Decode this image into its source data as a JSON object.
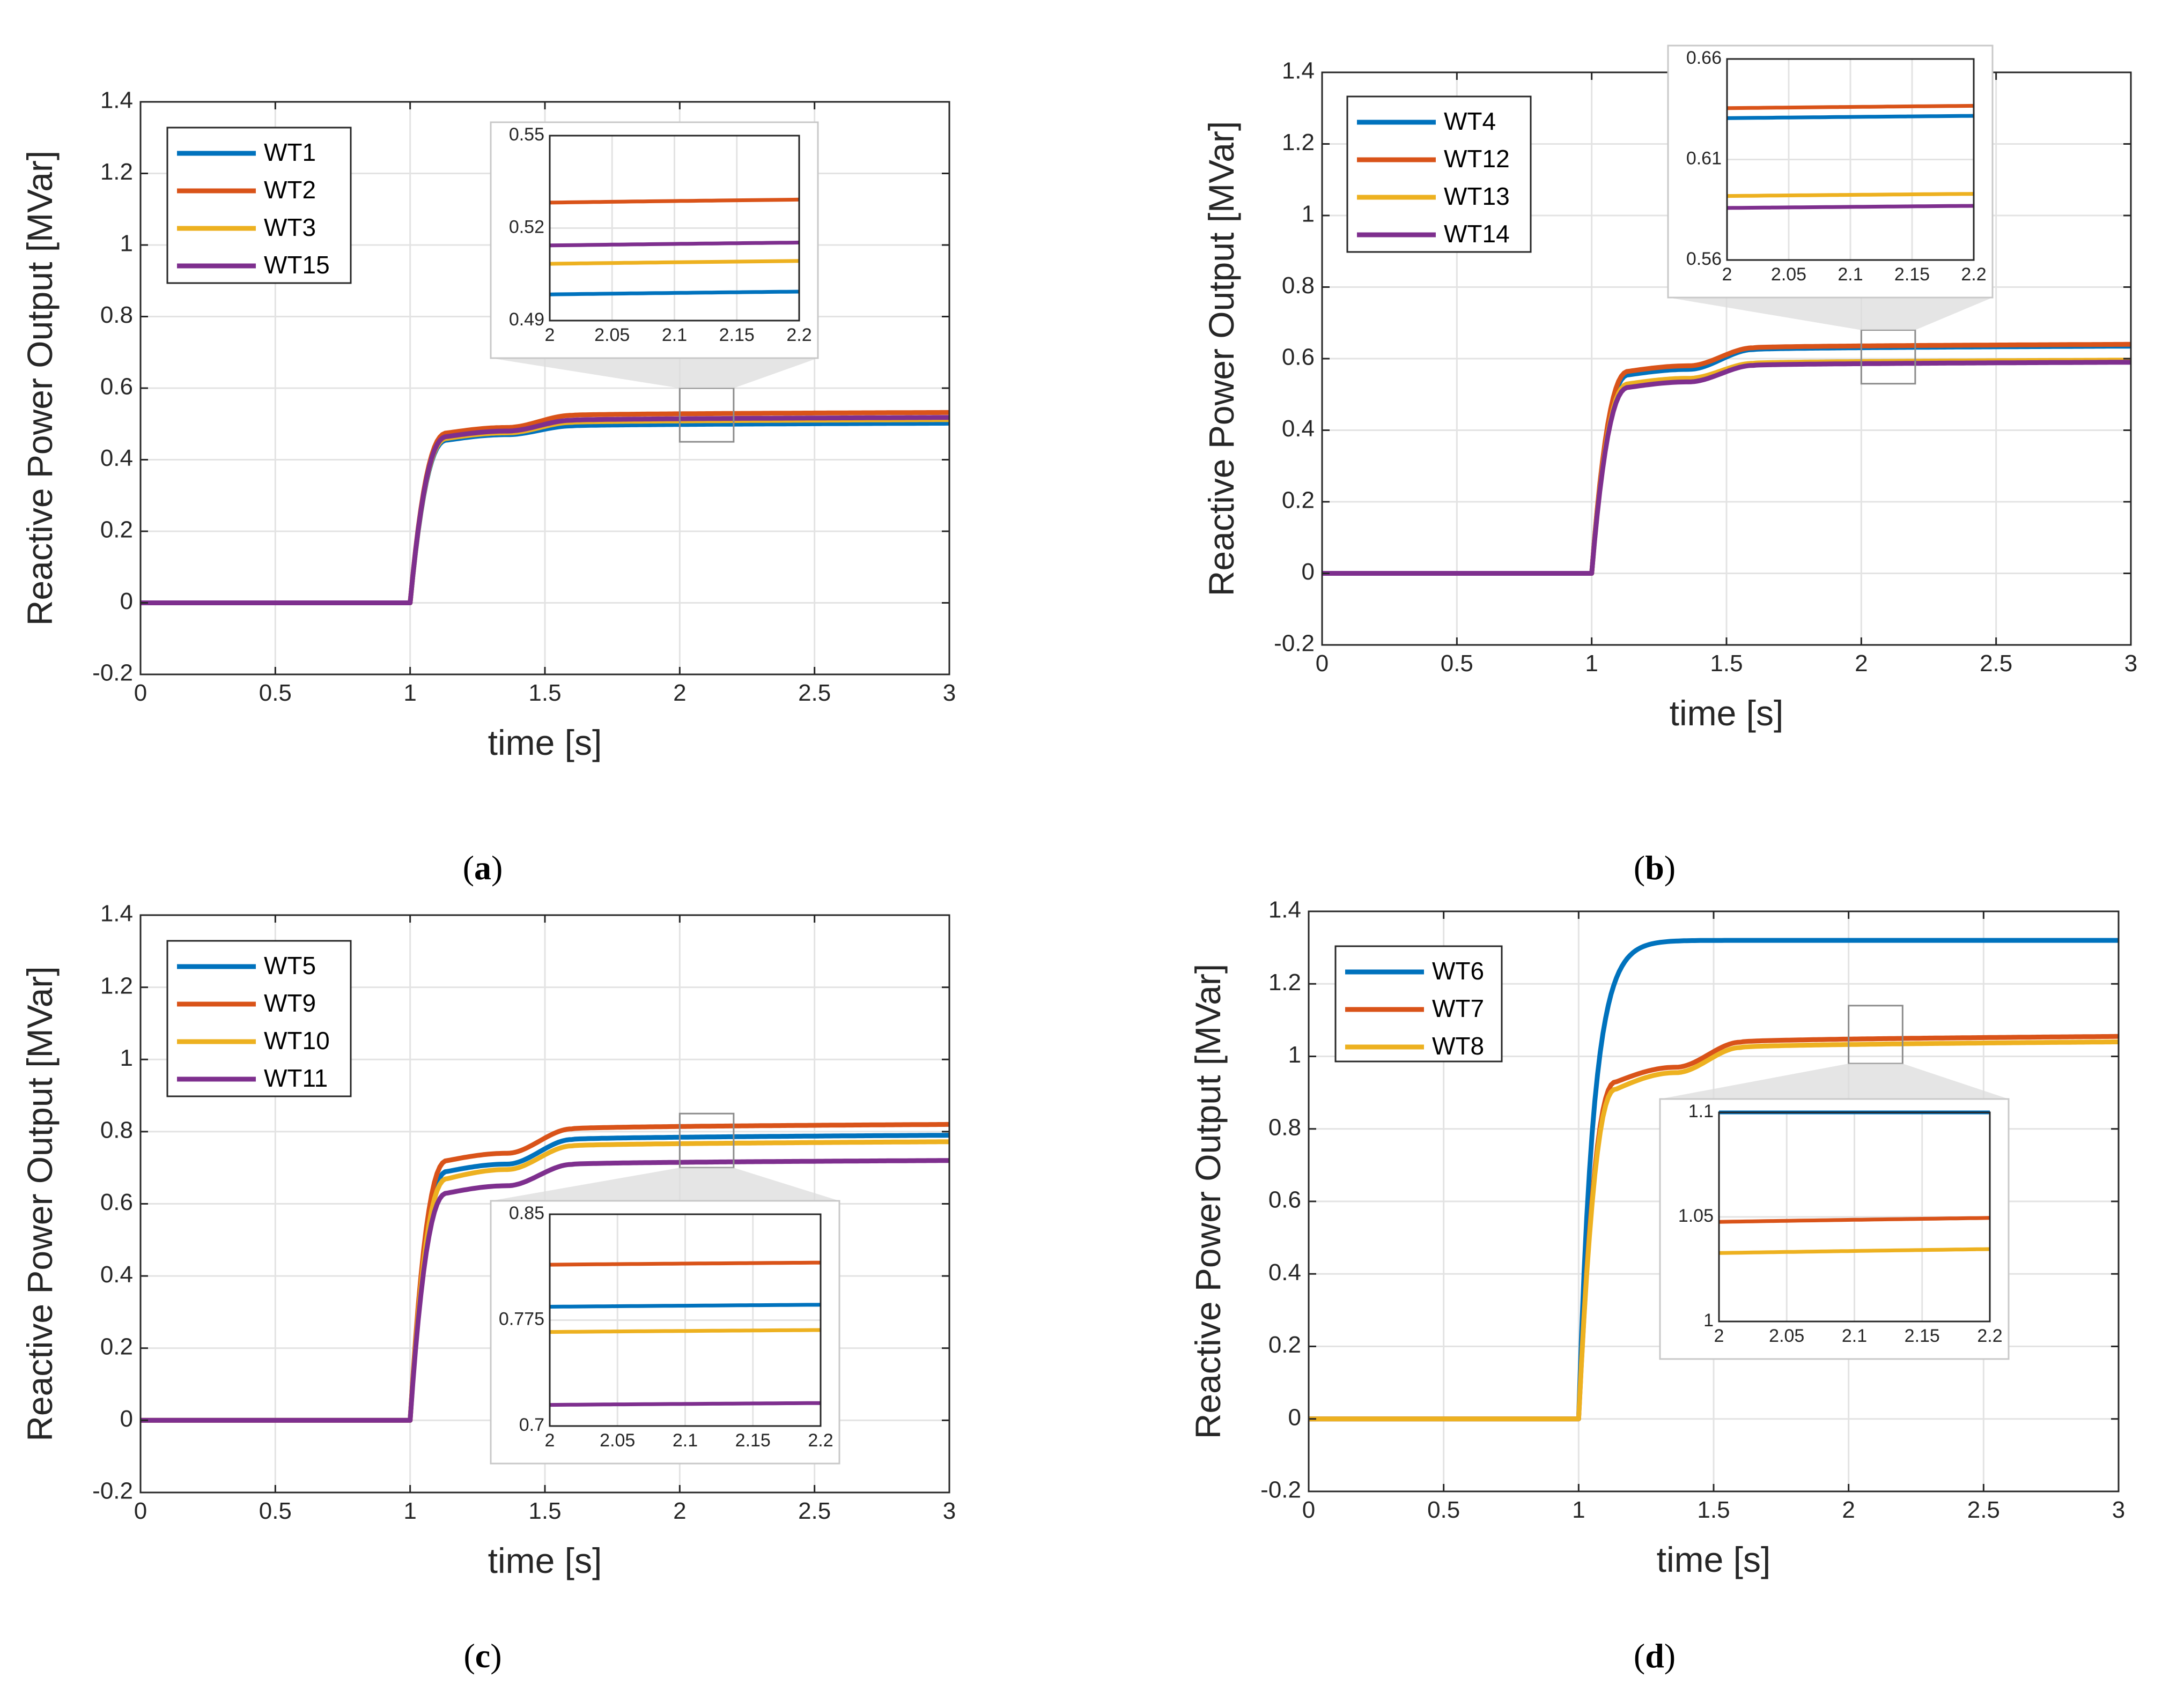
{
  "colors": {
    "blue": "#0072BD",
    "orange": "#D95319",
    "yellow": "#EDB120",
    "purple": "#7E2F8E",
    "grid": "#e3e3e3",
    "axis": "#262626"
  },
  "chart_data": [
    {
      "panel": "a",
      "type": "line",
      "caption": {
        "open": "(",
        "letter": "a",
        "close": ")"
      },
      "xlabel": "time [s]",
      "ylabel": "Reactive Power Output [MVar]",
      "xlim": [
        0,
        3
      ],
      "ylim": [
        -0.2,
        1.4
      ],
      "xticks": [
        0,
        0.5,
        1,
        1.5,
        2,
        2.5,
        3
      ],
      "xtick_labels": [
        "0",
        "0.5",
        "1",
        "1.5",
        "2",
        "2.5",
        "3"
      ],
      "yticks": [
        -0.2,
        0,
        0.2,
        0.4,
        0.6,
        0.8,
        1,
        1.2,
        1.4
      ],
      "ytick_labels": [
        "-0.2",
        "0",
        "0.2",
        "0.4",
        "0.6",
        "0.8",
        "1",
        "1.2",
        "1.4"
      ],
      "grid": true,
      "legend_position": "top-left",
      "series": [
        {
          "name": "WT1",
          "color": "blue",
          "steady": 0.502,
          "knee": 0.455,
          "mid": 0.47
        },
        {
          "name": "WT2",
          "color": "orange",
          "steady": 0.532,
          "knee": 0.475,
          "mid": 0.49
        },
        {
          "name": "WT3",
          "color": "yellow",
          "steady": 0.512,
          "knee": 0.46,
          "mid": 0.475
        },
        {
          "name": "WT15",
          "color": "purple",
          "steady": 0.518,
          "knee": 0.465,
          "mid": 0.48
        }
      ],
      "zoom": {
        "xlim": [
          2,
          2.2
        ],
        "ylim": [
          0.49,
          0.55
        ],
        "placement": "top-center",
        "xticks": [
          2,
          2.05,
          2.1,
          2.15,
          2.2
        ],
        "xtick_labels": [
          "2",
          "2.05",
          "2.1",
          "2.15",
          "2.2"
        ],
        "yticks": [
          0.49,
          0.52,
          0.55
        ],
        "ytick_labels": [
          "0.49",
          "0.52",
          "0.55"
        ],
        "source_ylim": [
          0.45,
          0.6
        ]
      }
    },
    {
      "panel": "b",
      "type": "line",
      "caption": {
        "open": "(",
        "letter": "b",
        "close": ")"
      },
      "xlabel": "time [s]",
      "ylabel": "Reactive Power Output [MVar]",
      "xlim": [
        0,
        3
      ],
      "ylim": [
        -0.2,
        1.4
      ],
      "xticks": [
        0,
        0.5,
        1,
        1.5,
        2,
        2.5,
        3
      ],
      "xtick_labels": [
        "0",
        "0.5",
        "1",
        "1.5",
        "2",
        "2.5",
        "3"
      ],
      "yticks": [
        -0.2,
        0,
        0.2,
        0.4,
        0.6,
        0.8,
        1,
        1.2,
        1.4
      ],
      "ytick_labels": [
        "-0.2",
        "0",
        "0.2",
        "0.4",
        "0.6",
        "0.8",
        "1",
        "1.2",
        "1.4"
      ],
      "grid": true,
      "legend_position": "top-left",
      "series": [
        {
          "name": "WT4",
          "color": "blue",
          "steady": 0.635,
          "knee": 0.555,
          "mid": 0.57
        },
        {
          "name": "WT12",
          "color": "orange",
          "steady": 0.64,
          "knee": 0.565,
          "mid": 0.58
        },
        {
          "name": "WT13",
          "color": "yellow",
          "steady": 0.596,
          "knee": 0.53,
          "mid": 0.545
        },
        {
          "name": "WT14",
          "color": "purple",
          "steady": 0.59,
          "knee": 0.52,
          "mid": 0.535
        }
      ],
      "zoom": {
        "xlim": [
          2,
          2.2
        ],
        "ylim": [
          0.56,
          0.66
        ],
        "placement": "top-right",
        "xticks": [
          2,
          2.05,
          2.1,
          2.15,
          2.2
        ],
        "xtick_labels": [
          "2",
          "2.05",
          "2.1",
          "2.15",
          "2.2"
        ],
        "yticks": [
          0.56,
          0.61,
          0.66
        ],
        "ytick_labels": [
          "0.56",
          "0.61",
          "0.66"
        ],
        "source_ylim": [
          0.53,
          0.68
        ]
      }
    },
    {
      "panel": "c",
      "type": "line",
      "caption": {
        "open": "(",
        "letter": "c",
        "close": ")"
      },
      "xlabel": "time [s]",
      "ylabel": "Reactive Power Output [MVar]",
      "xlim": [
        0,
        3
      ],
      "ylim": [
        -0.2,
        1.4
      ],
      "xticks": [
        0,
        0.5,
        1,
        1.5,
        2,
        2.5,
        3
      ],
      "xtick_labels": [
        "0",
        "0.5",
        "1",
        "1.5",
        "2",
        "2.5",
        "3"
      ],
      "yticks": [
        -0.2,
        0,
        0.2,
        0.4,
        0.6,
        0.8,
        1,
        1.2,
        1.4
      ],
      "ytick_labels": [
        "-0.2",
        "0",
        "0.2",
        "0.4",
        "0.6",
        "0.8",
        "1",
        "1.2",
        "1.4"
      ],
      "grid": true,
      "legend_position": "top-left",
      "series": [
        {
          "name": "WT5",
          "color": "blue",
          "steady": 0.79,
          "knee": 0.69,
          "mid": 0.71
        },
        {
          "name": "WT9",
          "color": "orange",
          "steady": 0.82,
          "knee": 0.72,
          "mid": 0.74
        },
        {
          "name": "WT10",
          "color": "yellow",
          "steady": 0.772,
          "knee": 0.67,
          "mid": 0.695
        },
        {
          "name": "WT11",
          "color": "purple",
          "steady": 0.72,
          "knee": 0.63,
          "mid": 0.65
        }
      ],
      "zoom": {
        "xlim": [
          2,
          2.2
        ],
        "ylim": [
          0.7,
          0.85
        ],
        "placement": "bottom-right",
        "xticks": [
          2,
          2.05,
          2.1,
          2.15,
          2.2
        ],
        "xtick_labels": [
          "2",
          "2.05",
          "2.1",
          "2.15",
          "2.2"
        ],
        "yticks": [
          0.7,
          0.775,
          0.85
        ],
        "ytick_labels": [
          "0.7",
          "0.775",
          "0.85"
        ],
        "source_ylim": [
          0.7,
          0.85
        ]
      }
    },
    {
      "panel": "d",
      "type": "line",
      "caption": {
        "open": "(",
        "letter": "d",
        "close": ")"
      },
      "xlabel": "time [s]",
      "ylabel": "Reactive Power Output [MVar]",
      "xlim": [
        0,
        3
      ],
      "ylim": [
        -0.2,
        1.4
      ],
      "xticks": [
        0,
        0.5,
        1,
        1.5,
        2,
        2.5,
        3
      ],
      "xtick_labels": [
        "0",
        "0.5",
        "1",
        "1.5",
        "2",
        "2.5",
        "3"
      ],
      "yticks": [
        -0.2,
        0,
        0.2,
        0.4,
        0.6,
        0.8,
        1,
        1.2,
        1.4
      ],
      "ytick_labels": [
        "-0.2",
        "0",
        "0.2",
        "0.4",
        "0.6",
        "0.8",
        "1",
        "1.2",
        "1.4"
      ],
      "grid": true,
      "legend_position": "top-left",
      "series": [
        {
          "name": "WT6",
          "color": "blue",
          "steady": 1.32,
          "knee": 1.3,
          "mid": 1.32,
          "fast": true
        },
        {
          "name": "WT7",
          "color": "orange",
          "steady": 1.055,
          "knee": 0.93,
          "mid": 0.97
        },
        {
          "name": "WT8",
          "color": "yellow",
          "steady": 1.04,
          "knee": 0.91,
          "mid": 0.955
        }
      ],
      "zoom": {
        "xlim": [
          2,
          2.2
        ],
        "ylim": [
          1,
          1.1
        ],
        "placement": "bottom-right",
        "xticks": [
          2,
          2.05,
          2.1,
          2.15,
          2.2
        ],
        "xtick_labels": [
          "2",
          "2.05",
          "2.1",
          "2.15",
          "2.2"
        ],
        "yticks": [
          1,
          1.05,
          1.1
        ],
        "ytick_labels": [
          "1",
          "1.05",
          "1.1"
        ],
        "source_ylim": [
          0.98,
          1.14
        ]
      }
    }
  ]
}
